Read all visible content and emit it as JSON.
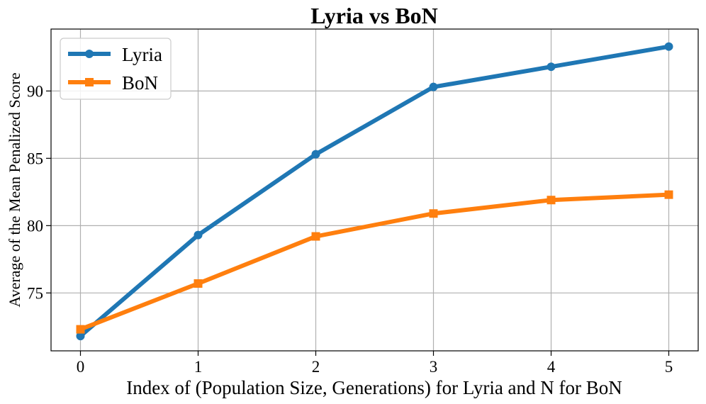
{
  "chart_data": {
    "type": "line",
    "title": "Lyria vs BoN",
    "xlabel": "Index of (Population Size, Generations) for Lyria and N for BoN",
    "ylabel": "Average of the Mean Penalized Score",
    "x": [
      0,
      1,
      2,
      3,
      4,
      5
    ],
    "xticks": [
      "0",
      "1",
      "2",
      "3",
      "4",
      "5"
    ],
    "yticks": [
      75,
      80,
      85,
      90
    ],
    "xlim": [
      -0.25,
      5.25
    ],
    "ylim": [
      70.7,
      94.6
    ],
    "grid": true,
    "legend_position": "top-left",
    "series": [
      {
        "name": "Lyria",
        "marker": "circle",
        "color": "#1f77b4",
        "values": [
          71.8,
          79.3,
          85.3,
          90.3,
          91.8,
          93.3
        ]
      },
      {
        "name": "BoN",
        "marker": "square",
        "color": "#ff7f0e",
        "values": [
          72.3,
          75.7,
          79.2,
          80.9,
          81.9,
          82.3
        ]
      }
    ]
  }
}
